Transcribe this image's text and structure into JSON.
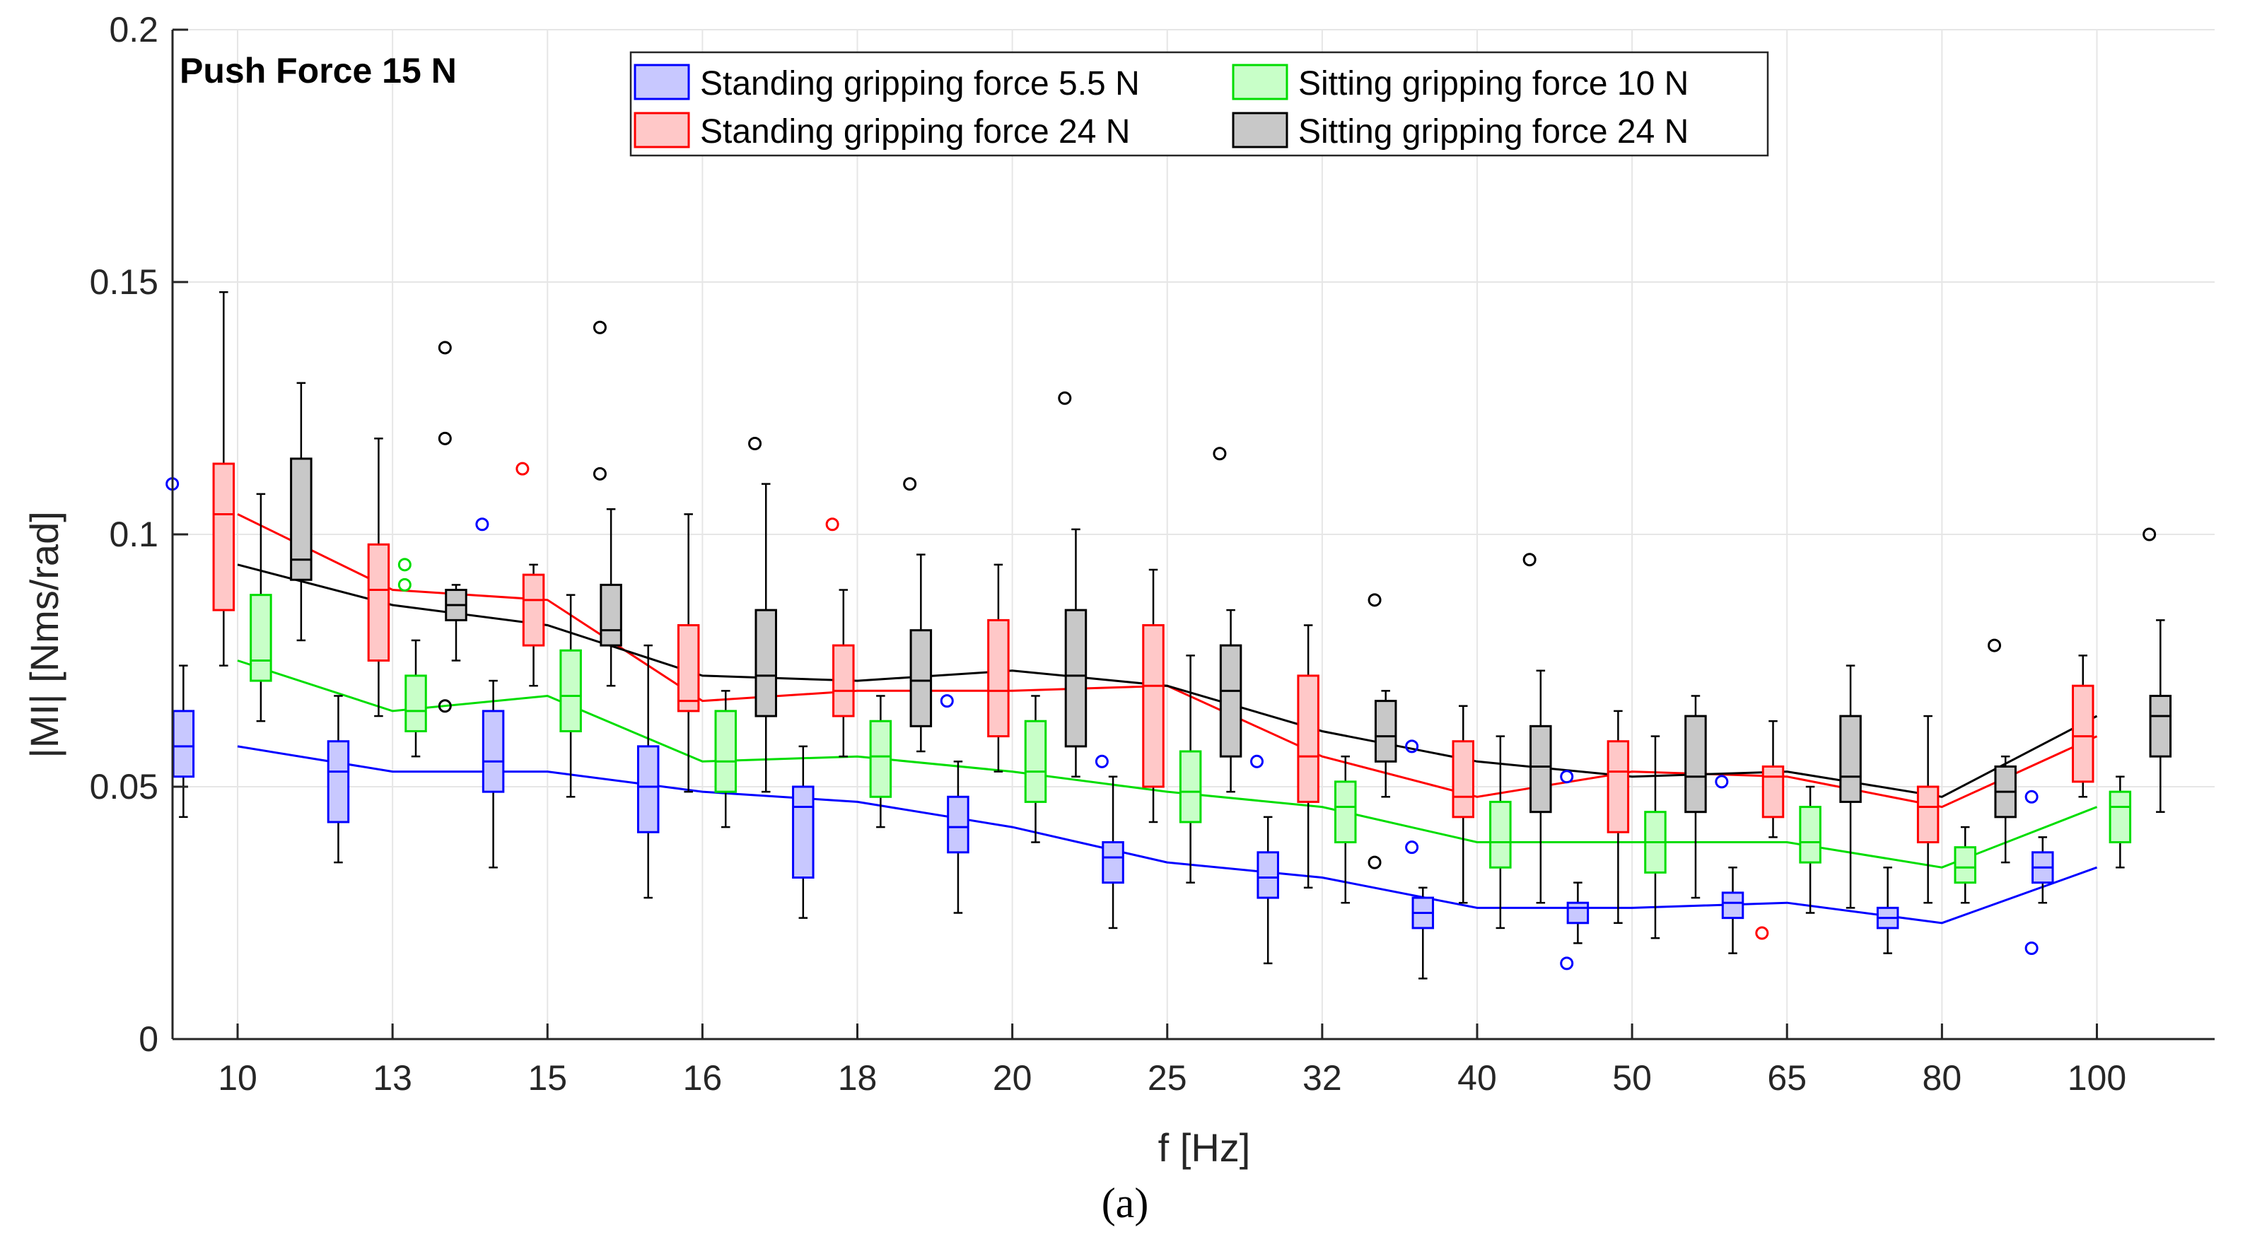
{
  "caption": "(a)",
  "chart_data": {
    "type": "box",
    "annotation": "Push Force 15 N",
    "xlabel": "f [Hz]",
    "ylabel": "|MI| [Nms/rad]",
    "categories": [
      "10",
      "13",
      "15",
      "16",
      "18",
      "20",
      "25",
      "32",
      "40",
      "50",
      "65",
      "80",
      "100"
    ],
    "ylim": [
      0,
      0.2
    ],
    "yticks": [
      0,
      0.05,
      0.1,
      0.15,
      0.2
    ],
    "ytick_labels": [
      "0",
      "0.05",
      "0.1",
      "0.15",
      "0.2"
    ],
    "grid": true,
    "legend": {
      "position": "top-center",
      "entries": [
        {
          "label": "Standing gripping force 5.5 N",
          "series": 0
        },
        {
          "label": "Sitting gripping force 10 N",
          "series": 2
        },
        {
          "label": "Standing gripping force 24 N",
          "series": 1
        },
        {
          "label": "Sitting gripping force 24 N",
          "series": 3
        }
      ]
    },
    "series": [
      {
        "name": "Standing gripping force 5.5 N",
        "color": "#0000ff",
        "fill": "#c8c8ff",
        "median_line": [
          0.058,
          0.053,
          0.053,
          0.049,
          0.047,
          0.042,
          0.035,
          0.032,
          0.026,
          0.026,
          0.027,
          0.023,
          0.034
        ],
        "boxes": [
          {
            "whisker_low": 0.044,
            "q1": 0.052,
            "median": 0.058,
            "q3": 0.065,
            "whisker_high": 0.074,
            "outliers": [
              0.11
            ]
          },
          {
            "whisker_low": 0.035,
            "q1": 0.043,
            "median": 0.053,
            "q3": 0.059,
            "whisker_high": 0.068,
            "outliers": []
          },
          {
            "whisker_low": 0.034,
            "q1": 0.049,
            "median": 0.055,
            "q3": 0.065,
            "whisker_high": 0.071,
            "outliers": [
              0.102
            ]
          },
          {
            "whisker_low": 0.028,
            "q1": 0.041,
            "median": 0.05,
            "q3": 0.058,
            "whisker_high": 0.078,
            "outliers": []
          },
          {
            "whisker_low": 0.024,
            "q1": 0.032,
            "median": 0.046,
            "q3": 0.05,
            "whisker_high": 0.058,
            "outliers": []
          },
          {
            "whisker_low": 0.025,
            "q1": 0.037,
            "median": 0.042,
            "q3": 0.048,
            "whisker_high": 0.055,
            "outliers": [
              0.067
            ]
          },
          {
            "whisker_low": 0.022,
            "q1": 0.031,
            "median": 0.036,
            "q3": 0.039,
            "whisker_high": 0.052,
            "outliers": [
              0.055
            ]
          },
          {
            "whisker_low": 0.015,
            "q1": 0.028,
            "median": 0.032,
            "q3": 0.037,
            "whisker_high": 0.044,
            "outliers": [
              0.055
            ]
          },
          {
            "whisker_low": 0.012,
            "q1": 0.022,
            "median": 0.025,
            "q3": 0.028,
            "whisker_high": 0.03,
            "outliers": [
              0.058,
              0.038
            ]
          },
          {
            "whisker_low": 0.019,
            "q1": 0.023,
            "median": 0.026,
            "q3": 0.027,
            "whisker_high": 0.031,
            "outliers": [
              0.052,
              0.015
            ]
          },
          {
            "whisker_low": 0.017,
            "q1": 0.024,
            "median": 0.027,
            "q3": 0.029,
            "whisker_high": 0.034,
            "outliers": [
              0.051
            ]
          },
          {
            "whisker_low": 0.017,
            "q1": 0.022,
            "median": 0.024,
            "q3": 0.026,
            "whisker_high": 0.034,
            "outliers": []
          },
          {
            "whisker_low": 0.027,
            "q1": 0.031,
            "median": 0.034,
            "q3": 0.037,
            "whisker_high": 0.04,
            "outliers": [
              0.048,
              0.018
            ]
          }
        ]
      },
      {
        "name": "Standing gripping force 24 N",
        "color": "#ff0000",
        "fill": "#ffc8c8",
        "median_line": [
          0.104,
          0.089,
          0.087,
          0.067,
          0.069,
          0.069,
          0.07,
          0.056,
          0.048,
          0.053,
          0.052,
          0.046,
          0.06
        ],
        "boxes": [
          {
            "whisker_low": 0.074,
            "q1": 0.085,
            "median": 0.104,
            "q3": 0.114,
            "whisker_high": 0.148,
            "outliers": []
          },
          {
            "whisker_low": 0.064,
            "q1": 0.075,
            "median": 0.089,
            "q3": 0.098,
            "whisker_high": 0.119,
            "outliers": []
          },
          {
            "whisker_low": 0.07,
            "q1": 0.078,
            "median": 0.087,
            "q3": 0.092,
            "whisker_high": 0.094,
            "outliers": [
              0.113
            ]
          },
          {
            "whisker_low": 0.049,
            "q1": 0.065,
            "median": 0.067,
            "q3": 0.082,
            "whisker_high": 0.104,
            "outliers": []
          },
          {
            "whisker_low": 0.056,
            "q1": 0.064,
            "median": 0.069,
            "q3": 0.078,
            "whisker_high": 0.089,
            "outliers": [
              0.102
            ]
          },
          {
            "whisker_low": 0.053,
            "q1": 0.06,
            "median": 0.069,
            "q3": 0.083,
            "whisker_high": 0.094,
            "outliers": []
          },
          {
            "whisker_low": 0.043,
            "q1": 0.05,
            "median": 0.07,
            "q3": 0.082,
            "whisker_high": 0.093,
            "outliers": []
          },
          {
            "whisker_low": 0.03,
            "q1": 0.047,
            "median": 0.056,
            "q3": 0.072,
            "whisker_high": 0.082,
            "outliers": []
          },
          {
            "whisker_low": 0.027,
            "q1": 0.044,
            "median": 0.048,
            "q3": 0.059,
            "whisker_high": 0.066,
            "outliers": []
          },
          {
            "whisker_low": 0.023,
            "q1": 0.041,
            "median": 0.053,
            "q3": 0.059,
            "whisker_high": 0.065,
            "outliers": []
          },
          {
            "whisker_low": 0.04,
            "q1": 0.044,
            "median": 0.052,
            "q3": 0.054,
            "whisker_high": 0.063,
            "outliers": [
              0.021
            ]
          },
          {
            "whisker_low": 0.027,
            "q1": 0.039,
            "median": 0.046,
            "q3": 0.05,
            "whisker_high": 0.064,
            "outliers": []
          },
          {
            "whisker_low": 0.048,
            "q1": 0.051,
            "median": 0.06,
            "q3": 0.07,
            "whisker_high": 0.076,
            "outliers": []
          }
        ]
      },
      {
        "name": "Sitting gripping force 10 N",
        "color": "#00dd00",
        "fill": "#c8ffc8",
        "median_line": [
          0.075,
          0.065,
          0.068,
          0.055,
          0.056,
          0.053,
          0.049,
          0.046,
          0.039,
          0.039,
          0.039,
          0.034,
          0.046
        ],
        "boxes": [
          {
            "whisker_low": 0.063,
            "q1": 0.071,
            "median": 0.075,
            "q3": 0.088,
            "whisker_high": 0.108,
            "outliers": []
          },
          {
            "whisker_low": 0.056,
            "q1": 0.061,
            "median": 0.065,
            "q3": 0.072,
            "whisker_high": 0.079,
            "outliers": [
              0.094,
              0.09
            ]
          },
          {
            "whisker_low": 0.048,
            "q1": 0.061,
            "median": 0.068,
            "q3": 0.077,
            "whisker_high": 0.088,
            "outliers": []
          },
          {
            "whisker_low": 0.042,
            "q1": 0.049,
            "median": 0.055,
            "q3": 0.065,
            "whisker_high": 0.069,
            "outliers": []
          },
          {
            "whisker_low": 0.042,
            "q1": 0.048,
            "median": 0.056,
            "q3": 0.063,
            "whisker_high": 0.068,
            "outliers": []
          },
          {
            "whisker_low": 0.039,
            "q1": 0.047,
            "median": 0.053,
            "q3": 0.063,
            "whisker_high": 0.068,
            "outliers": []
          },
          {
            "whisker_low": 0.031,
            "q1": 0.043,
            "median": 0.049,
            "q3": 0.057,
            "whisker_high": 0.076,
            "outliers": []
          },
          {
            "whisker_low": 0.027,
            "q1": 0.039,
            "median": 0.046,
            "q3": 0.051,
            "whisker_high": 0.056,
            "outliers": []
          },
          {
            "whisker_low": 0.022,
            "q1": 0.034,
            "median": 0.039,
            "q3": 0.047,
            "whisker_high": 0.06,
            "outliers": []
          },
          {
            "whisker_low": 0.02,
            "q1": 0.033,
            "median": 0.039,
            "q3": 0.045,
            "whisker_high": 0.06,
            "outliers": []
          },
          {
            "whisker_low": 0.025,
            "q1": 0.035,
            "median": 0.039,
            "q3": 0.046,
            "whisker_high": 0.05,
            "outliers": []
          },
          {
            "whisker_low": 0.027,
            "q1": 0.031,
            "median": 0.034,
            "q3": 0.038,
            "whisker_high": 0.042,
            "outliers": []
          },
          {
            "whisker_low": 0.034,
            "q1": 0.039,
            "median": 0.046,
            "q3": 0.049,
            "whisker_high": 0.052,
            "outliers": []
          }
        ]
      },
      {
        "name": "Sitting gripping force 24 N",
        "color": "#000000",
        "fill": "#c8c8c8",
        "median_line": [
          0.094,
          0.086,
          0.082,
          0.072,
          0.071,
          0.073,
          0.07,
          0.061,
          0.055,
          0.052,
          0.053,
          0.048,
          0.064
        ],
        "boxes": [
          {
            "whisker_low": 0.079,
            "q1": 0.091,
            "median": 0.095,
            "q3": 0.115,
            "whisker_high": 0.13,
            "outliers": []
          },
          {
            "whisker_low": 0.075,
            "q1": 0.083,
            "median": 0.086,
            "q3": 0.089,
            "whisker_high": 0.09,
            "outliers": [
              0.137,
              0.119,
              0.066
            ]
          },
          {
            "whisker_low": 0.07,
            "q1": 0.078,
            "median": 0.081,
            "q3": 0.09,
            "whisker_high": 0.105,
            "outliers": [
              0.141,
              0.112
            ]
          },
          {
            "whisker_low": 0.049,
            "q1": 0.064,
            "median": 0.072,
            "q3": 0.085,
            "whisker_high": 0.11,
            "outliers": [
              0.118
            ]
          },
          {
            "whisker_low": 0.057,
            "q1": 0.062,
            "median": 0.071,
            "q3": 0.081,
            "whisker_high": 0.096,
            "outliers": [
              0.11
            ]
          },
          {
            "whisker_low": 0.052,
            "q1": 0.058,
            "median": 0.072,
            "q3": 0.085,
            "whisker_high": 0.101,
            "outliers": [
              0.127
            ]
          },
          {
            "whisker_low": 0.049,
            "q1": 0.056,
            "median": 0.069,
            "q3": 0.078,
            "whisker_high": 0.085,
            "outliers": [
              0.116
            ]
          },
          {
            "whisker_low": 0.048,
            "q1": 0.055,
            "median": 0.06,
            "q3": 0.067,
            "whisker_high": 0.069,
            "outliers": [
              0.087,
              0.035
            ]
          },
          {
            "whisker_low": 0.027,
            "q1": 0.045,
            "median": 0.054,
            "q3": 0.062,
            "whisker_high": 0.073,
            "outliers": [
              0.095
            ]
          },
          {
            "whisker_low": 0.028,
            "q1": 0.045,
            "median": 0.052,
            "q3": 0.064,
            "whisker_high": 0.068,
            "outliers": []
          },
          {
            "whisker_low": 0.026,
            "q1": 0.047,
            "median": 0.052,
            "q3": 0.064,
            "whisker_high": 0.074,
            "outliers": []
          },
          {
            "whisker_low": 0.035,
            "q1": 0.044,
            "median": 0.049,
            "q3": 0.054,
            "whisker_high": 0.056,
            "outliers": [
              0.078
            ]
          },
          {
            "whisker_low": 0.045,
            "q1": 0.056,
            "median": 0.064,
            "q3": 0.068,
            "whisker_high": 0.083,
            "outliers": [
              0.1
            ]
          }
        ]
      }
    ]
  }
}
